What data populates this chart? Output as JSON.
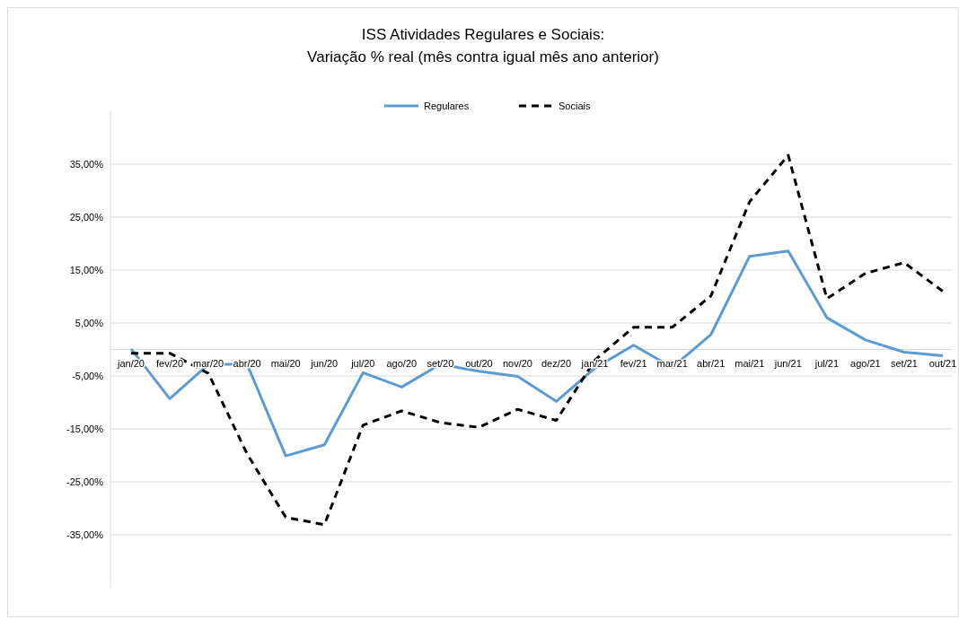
{
  "chart_data": {
    "type": "line",
    "title": "ISS Atividades Regulares e Sociais:",
    "subtitle": "Variação % real (mês contra igual mês ano anterior)",
    "categories": [
      "jan/20",
      "fev/20",
      "mar/20",
      "abr/20",
      "mai/20",
      "jun/20",
      "jul/20",
      "ago/20",
      "set/20",
      "out/20",
      "nov/20",
      "dez/20",
      "jan/21",
      "fev/21",
      "mar/21",
      "abr/21",
      "mai/21",
      "jun/21",
      "jul/21",
      "ago/21",
      "set/21",
      "out/21"
    ],
    "series": [
      {
        "name": "Regulares",
        "color": "#5b9bd5",
        "line_style": "solid",
        "values": [
          0.1,
          -9.3,
          -2.8,
          -2.8,
          -20.1,
          -18.0,
          -4.4,
          -7.1,
          -2.8,
          -4.1,
          -5.1,
          -9.8,
          -3.5,
          0.8,
          -3.4,
          2.8,
          17.6,
          18.6,
          6.0,
          1.8,
          -0.5,
          -1.2
        ]
      },
      {
        "name": "Sociais",
        "color": "#000000",
        "line_style": "dashed",
        "values": [
          -0.7,
          -0.7,
          -4.5,
          -19.7,
          -31.7,
          -33.1,
          -14.3,
          -11.6,
          -13.8,
          -14.7,
          -11.3,
          -13.4,
          -2.0,
          4.2,
          4.2,
          10.1,
          27.9,
          36.7,
          9.6,
          14.4,
          16.4,
          11.0
        ]
      }
    ],
    "ylim": [
      -45,
      45
    ],
    "yticks": [
      {
        "value": -35,
        "label": "-35,00%"
      },
      {
        "value": -25,
        "label": "-25,00%"
      },
      {
        "value": -15,
        "label": "-15,00%"
      },
      {
        "value": -5,
        "label": "-5,00%"
      },
      {
        "value": 5,
        "label": "5,00%"
      },
      {
        "value": 15,
        "label": "15,00%"
      },
      {
        "value": 25,
        "label": "25,00%"
      },
      {
        "value": 35,
        "label": "35,00%"
      }
    ],
    "grid": "y",
    "legend": "top",
    "marker": "none"
  }
}
